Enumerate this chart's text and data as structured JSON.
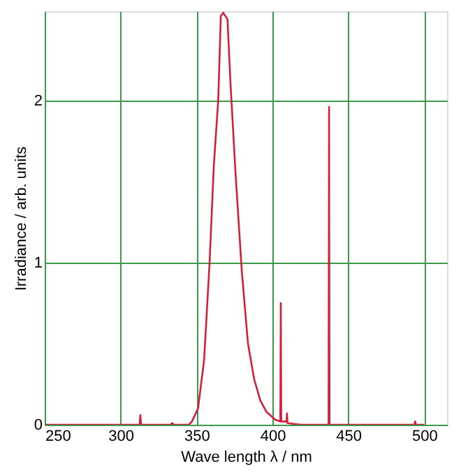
{
  "chart_data": {
    "type": "line",
    "xlabel": "Wave length λ / nm",
    "ylabel": "Irradiance / arb. units",
    "series": [
      {
        "color": "#d11f3c",
        "x": [
          250,
          312.5,
          313,
          313.5,
          333,
          334,
          335,
          345,
          347,
          351,
          355,
          358.6,
          361.4,
          364.3,
          366,
          367.6,
          370.4,
          372.4,
          375.7,
          379.8,
          383.9,
          388,
          392,
          396,
          402,
          405.2,
          405.5,
          405.8,
          409.3,
          409.6,
          409.9,
          418.6,
          437,
          437.3,
          437.6,
          493.5,
          494,
          494.5,
          500
        ],
        "values": [
          0,
          0,
          0.06,
          0,
          0,
          0.01,
          0,
          0,
          0.02,
          0.1,
          0.4,
          1.0,
          1.6,
          2.0,
          2.52,
          2.54,
          2.5,
          2.1,
          1.55,
          0.95,
          0.5,
          0.28,
          0.15,
          0.08,
          0.03,
          0.02,
          0.75,
          0.02,
          0.02,
          0.07,
          0.01,
          0,
          0,
          1.96,
          0,
          0,
          0.02,
          0,
          0
        ]
      }
    ],
    "xlim": [
      250,
      515
    ],
    "xticks": [
      250,
      300,
      350,
      400,
      450,
      500
    ],
    "ylim": [
      0,
      2.55
    ],
    "yticks": [
      0,
      1,
      2
    ],
    "grid": true,
    "line_style": "solid",
    "marker": "none"
  }
}
